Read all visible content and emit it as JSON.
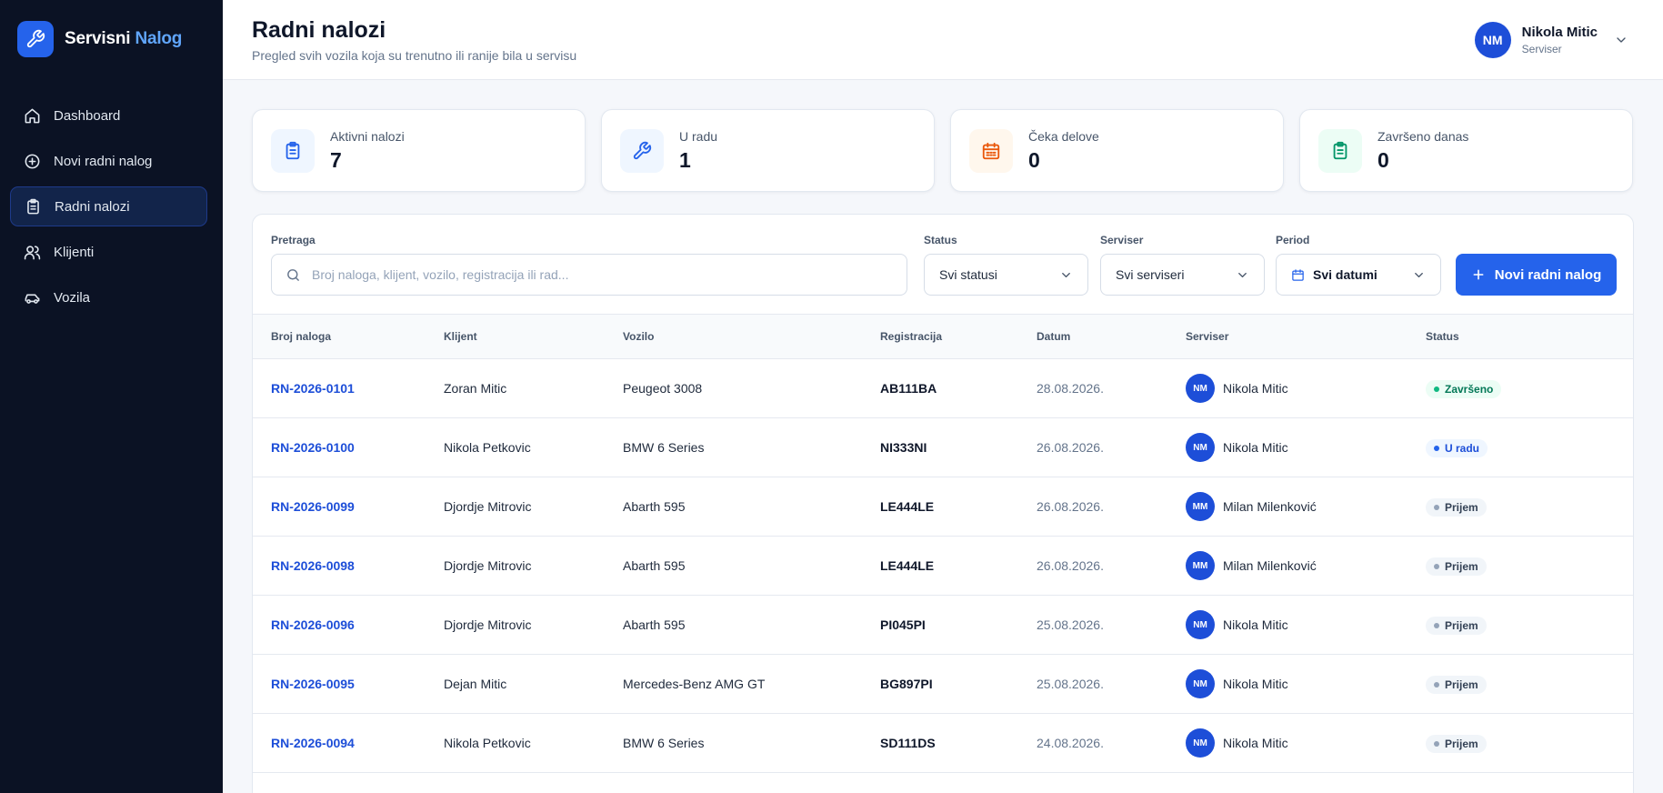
{
  "app": {
    "name_main": "Servisni",
    "name_accent": "Nalog"
  },
  "sidebar": {
    "items": [
      {
        "label": "Dashboard",
        "icon": "home-icon",
        "active": false
      },
      {
        "label": "Novi radni nalog",
        "icon": "plus-circle-icon",
        "active": false
      },
      {
        "label": "Radni nalozi",
        "icon": "clipboard-icon",
        "active": true
      },
      {
        "label": "Klijenti",
        "icon": "users-icon",
        "active": false
      },
      {
        "label": "Vozila",
        "icon": "car-icon",
        "active": false
      }
    ]
  },
  "header": {
    "title": "Radni nalozi",
    "subtitle": "Pregled svih vozila koja su trenutno ili ranije bila u servisu",
    "user": {
      "initials": "NM",
      "name": "Nikola Mitic",
      "role": "Serviser"
    }
  },
  "stats": [
    {
      "label": "Aktivni nalozi",
      "value": "7",
      "icon": "clipboard-icon",
      "color": "#2563eb",
      "bg": "#eff6ff"
    },
    {
      "label": "U radu",
      "value": "1",
      "icon": "wrench-icon",
      "color": "#2563eb",
      "bg": "#eff6ff"
    },
    {
      "label": "Čeka delove",
      "value": "0",
      "icon": "calendar-icon",
      "color": "#ea580c",
      "bg": "#fff7ed"
    },
    {
      "label": "Završeno danas",
      "value": "0",
      "icon": "clipboard-check-icon",
      "color": "#059669",
      "bg": "#ecfdf5"
    }
  ],
  "filters": {
    "search": {
      "label": "Pretraga",
      "placeholder": "Broj naloga, klijent, vozilo, registracija ili rad..."
    },
    "status": {
      "label": "Status",
      "value": "Svi statusi"
    },
    "serviser": {
      "label": "Serviser",
      "value": "Svi serviseri"
    },
    "period": {
      "label": "Period",
      "value": "Svi datumi"
    },
    "new_button": "Novi radni nalog"
  },
  "table": {
    "columns": [
      "Broj naloga",
      "Klijent",
      "Vozilo",
      "Registracija",
      "Datum",
      "Serviser",
      "Status"
    ],
    "rows": [
      {
        "id": "RN-2026-0101",
        "client": "Zoran Mitic",
        "vehicle": "Peugeot 3008",
        "reg": "AB111BA",
        "date": "28.08.2026.",
        "serviser_initials": "NM",
        "serviser": "Nikola Mitic",
        "status": "Završeno",
        "status_type": "done"
      },
      {
        "id": "RN-2026-0100",
        "client": "Nikola Petkovic",
        "vehicle": "BMW 6 Series",
        "reg": "NI333NI",
        "date": "26.08.2026.",
        "serviser_initials": "NM",
        "serviser": "Nikola Mitic",
        "status": "U radu",
        "status_type": "work"
      },
      {
        "id": "RN-2026-0099",
        "client": "Djordje Mitrovic",
        "vehicle": "Abarth 595",
        "reg": "LE444LE",
        "date": "26.08.2026.",
        "serviser_initials": "MM",
        "serviser": "Milan Milenković",
        "status": "Prijem",
        "status_type": "recv"
      },
      {
        "id": "RN-2026-0098",
        "client": "Djordje Mitrovic",
        "vehicle": "Abarth 595",
        "reg": "LE444LE",
        "date": "26.08.2026.",
        "serviser_initials": "MM",
        "serviser": "Milan Milenković",
        "status": "Prijem",
        "status_type": "recv"
      },
      {
        "id": "RN-2026-0096",
        "client": "Djordje Mitrovic",
        "vehicle": "Abarth 595",
        "reg": "PI045PI",
        "date": "25.08.2026.",
        "serviser_initials": "NM",
        "serviser": "Nikola Mitic",
        "status": "Prijem",
        "status_type": "recv"
      },
      {
        "id": "RN-2026-0095",
        "client": "Dejan Mitic",
        "vehicle": "Mercedes-Benz AMG GT",
        "reg": "BG897PI",
        "date": "25.08.2026.",
        "serviser_initials": "NM",
        "serviser": "Nikola Mitic",
        "status": "Prijem",
        "status_type": "recv"
      },
      {
        "id": "RN-2026-0094",
        "client": "Nikola Petkovic",
        "vehicle": "BMW 6 Series",
        "reg": "SD111DS",
        "date": "24.08.2026.",
        "serviser_initials": "NM",
        "serviser": "Nikola Mitic",
        "status": "Prijem",
        "status_type": "recv"
      },
      {
        "id": "",
        "client": "",
        "vehicle": "",
        "reg": "",
        "date": "",
        "serviser_initials": "",
        "serviser": "",
        "status": "",
        "status_type": ""
      }
    ]
  }
}
